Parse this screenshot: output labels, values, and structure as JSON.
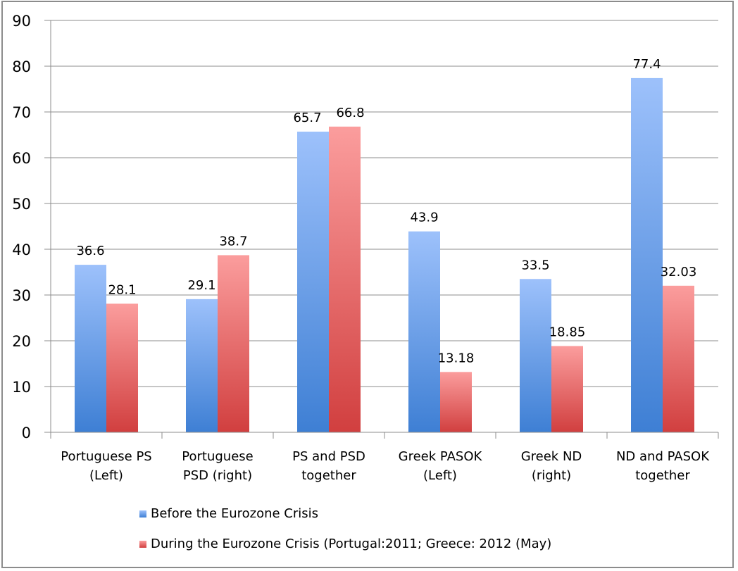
{
  "chart_data": {
    "type": "bar",
    "title": "",
    "xlabel": "",
    "ylabel": "",
    "ylim": [
      0,
      90
    ],
    "yticks": [
      "0",
      "10",
      "20",
      "30",
      "40",
      "50",
      "60",
      "70",
      "80",
      "90"
    ],
    "grid": true,
    "legend_position": "bottom",
    "categories": [
      [
        "Portuguese PS",
        "(Left)"
      ],
      [
        "Portuguese",
        "PSD (right)"
      ],
      [
        "PS and PSD",
        "together"
      ],
      [
        "Greek PASOK",
        "(Left)"
      ],
      [
        "Greek ND",
        "(right)"
      ],
      [
        "ND and PASOK",
        "together"
      ]
    ],
    "series": [
      {
        "name": "Before the Eurozone Crisis",
        "color_top": "#9dc1fb",
        "color_bottom": "#3e7fd4",
        "values": [
          36.6,
          29.1,
          65.7,
          43.9,
          33.5,
          77.4
        ],
        "labels": [
          "36.6",
          "29.1",
          "65.7",
          "43.9",
          "33.5",
          "77.4"
        ]
      },
      {
        "name": "During the Eurozone Crisis (Portugal:2011; Greece: 2012 (May)",
        "color_top": "#fb9d9d",
        "color_bottom": "#d13f3f",
        "values": [
          28.1,
          38.7,
          66.8,
          13.18,
          18.85,
          32.03
        ],
        "labels": [
          "28.1",
          "38.7",
          "66.8",
          "13.18",
          "18.85",
          "32.03"
        ]
      }
    ]
  }
}
